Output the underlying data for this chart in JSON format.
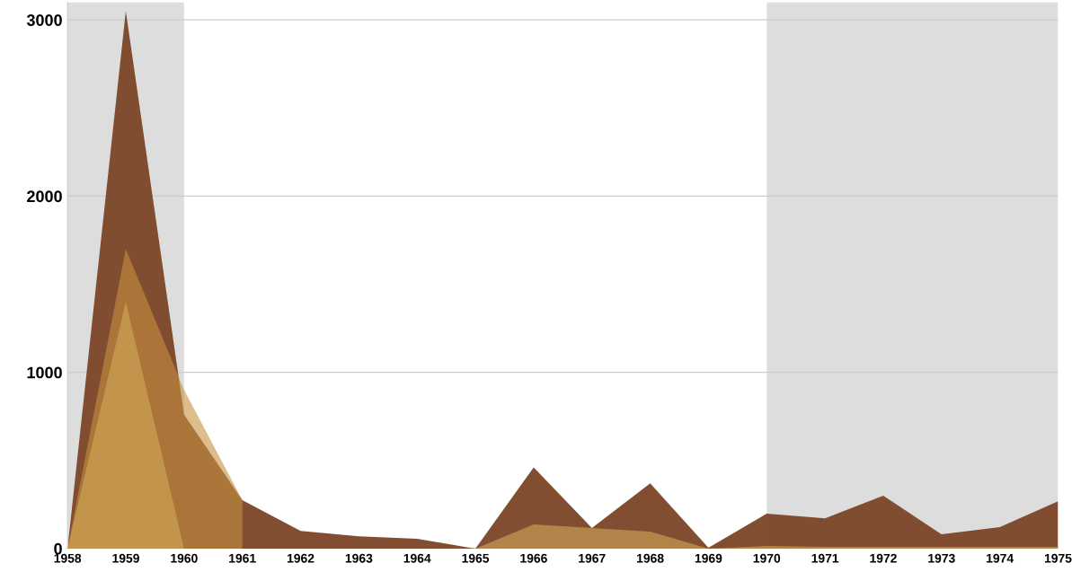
{
  "chart_data": {
    "type": "area",
    "x": [
      1958,
      1959,
      1960,
      1961,
      1962,
      1963,
      1964,
      1965,
      1966,
      1967,
      1968,
      1969,
      1970,
      1971,
      1972,
      1973,
      1974,
      1975
    ],
    "series": [
      {
        "color": "#7a4426",
        "values": [
          0,
          3050,
          760,
          275,
          100,
          70,
          55,
          0,
          460,
          117,
          370,
          5,
          198,
          172,
          300,
          81,
          122,
          268
        ]
      },
      {
        "color": "#c8913f",
        "values": [
          0,
          1700,
          900,
          275,
          null,
          null,
          null,
          null,
          null,
          null,
          null,
          null,
          null,
          null,
          null,
          null,
          null,
          null
        ]
      },
      {
        "color": "#d4a85a",
        "values": [
          0,
          1400,
          0,
          0,
          0,
          0,
          0,
          0,
          137,
          117,
          96,
          0,
          15,
          10,
          10,
          10,
          10,
          10
        ]
      }
    ],
    "xlim": [
      1958,
      1975
    ],
    "xticks": [
      1958,
      1959,
      1960,
      1961,
      1962,
      1963,
      1964,
      1965,
      1966,
      1967,
      1968,
      1969,
      1970,
      1971,
      1972,
      1973,
      1974,
      1975
    ],
    "ylim": [
      0,
      3100
    ],
    "yticks": [
      0,
      1000,
      2000,
      3000
    ],
    "bands": [
      {
        "axis": "x",
        "from": 1958,
        "to": 1960,
        "color": "#dddddd"
      },
      {
        "axis": "x",
        "from": 1970,
        "to": 1975,
        "color": "#dddddd"
      }
    ],
    "grid": "y",
    "legend": false
  }
}
